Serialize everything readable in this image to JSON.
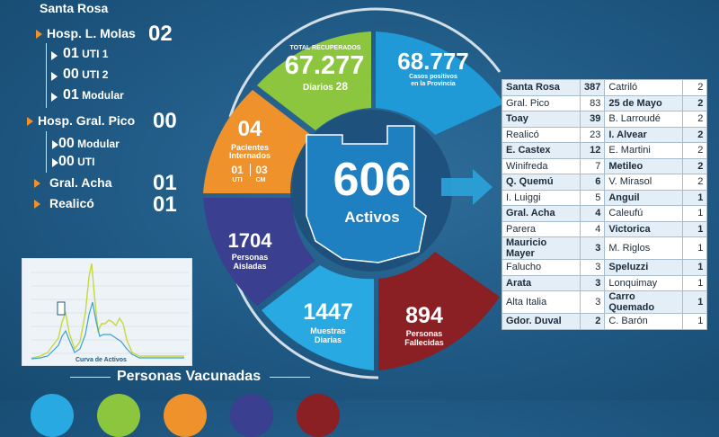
{
  "left": {
    "title": "Santa Rosa",
    "hospitals": [
      {
        "name": "Hosp. L. Molas",
        "count": "02"
      },
      {
        "name": "Hosp. Gral. Pico",
        "count": "00"
      },
      {
        "name": "Gral. Acha",
        "count": "01"
      },
      {
        "name": "Realicó",
        "count": "01"
      }
    ],
    "molas_sub": [
      {
        "num": "01",
        "label": "UTI 1"
      },
      {
        "num": "00",
        "label": "UTI 2"
      },
      {
        "num": "01",
        "label": "Modular"
      }
    ],
    "pico_sub": [
      {
        "num": "00",
        "label": "Modular"
      },
      {
        "num": "00",
        "label": "UTI"
      }
    ]
  },
  "wheel": {
    "recovered_label": "TOTAL RECUPERADOS",
    "recovered_value": "67.277",
    "daily_label": "Diarios",
    "daily_value": "28",
    "positive_value": "68.777",
    "positive_label_1": "Casos positivos",
    "positive_label_2": "en la Provincia",
    "internados_value": "04",
    "internados_label_1": "Pacientes",
    "internados_label_2": "Internados",
    "uti_value": "01",
    "uti_label": "UTI",
    "cm_value": "03",
    "cm_label": "CM",
    "aisladas_value": "1704",
    "aisladas_label_1": "Personas",
    "aisladas_label_2": "Aisladas",
    "muestras_value": "1447",
    "muestras_label_1": "Muestras",
    "muestras_label_2": "Diarias",
    "fallecidas_value": "894",
    "fallecidas_label_1": "Personas",
    "fallecidas_label_2": "Fallecidas",
    "activos_value": "606",
    "activos_label": "Activos"
  },
  "table": {
    "left": [
      {
        "name": "Santa Rosa",
        "value": "387",
        "bold": true
      },
      {
        "name": "Gral. Pico",
        "value": "83",
        "bold": false
      },
      {
        "name": "Toay",
        "value": "39",
        "bold": true
      },
      {
        "name": "Realicó",
        "value": "23",
        "bold": false
      },
      {
        "name": "E. Castex",
        "value": "12",
        "bold": true
      },
      {
        "name": "Winifreda",
        "value": "7",
        "bold": false
      },
      {
        "name": "Q. Quemú",
        "value": "6",
        "bold": true
      },
      {
        "name": "I. Luiggi",
        "value": "5",
        "bold": false
      },
      {
        "name": "Gral. Acha",
        "value": "4",
        "bold": true
      },
      {
        "name": "Parera",
        "value": "4",
        "bold": false
      },
      {
        "name": "Mauricio Mayer",
        "value": "3",
        "bold": true
      },
      {
        "name": "Falucho",
        "value": "3",
        "bold": false
      },
      {
        "name": "Arata",
        "value": "3",
        "bold": true
      },
      {
        "name": "Alta Italia",
        "value": "3",
        "bold": false
      },
      {
        "name": "Gdor. Duval",
        "value": "2",
        "bold": true
      }
    ],
    "right": [
      {
        "name": "Catriló",
        "value": "2",
        "bold": false
      },
      {
        "name": "25 de Mayo",
        "value": "2",
        "bold": true
      },
      {
        "name": "B. Larroudé",
        "value": "2",
        "bold": false
      },
      {
        "name": "I. Alvear",
        "value": "2",
        "bold": true
      },
      {
        "name": "E. Martini",
        "value": "2",
        "bold": false
      },
      {
        "name": "Metileo",
        "value": "2",
        "bold": true
      },
      {
        "name": "V. Mirasol",
        "value": "2",
        "bold": false
      },
      {
        "name": "Anguil",
        "value": "1",
        "bold": true
      },
      {
        "name": "Caleufú",
        "value": "1",
        "bold": false
      },
      {
        "name": "Victorica",
        "value": "1",
        "bold": true
      },
      {
        "name": "M. Riglos",
        "value": "1",
        "bold": false
      },
      {
        "name": "Speluzzi",
        "value": "1",
        "bold": true
      },
      {
        "name": "Lonquimay",
        "value": "1",
        "bold": false
      },
      {
        "name": "Carro Quemado",
        "value": "1",
        "bold": true
      },
      {
        "name": "C. Barón",
        "value": "1",
        "bold": false
      }
    ]
  },
  "curve": {
    "label": "Curva de Activos"
  },
  "vaccinated": {
    "title": "Personas Vacunadas"
  },
  "colors": {
    "recovered": "#8cc63f",
    "positive": "#1f9ad6",
    "internados": "#f0922b",
    "aisladas": "#3b3f8f",
    "muestras": "#29a9e1",
    "fallecidas": "#8a1f24",
    "center": "#1e7fc1"
  }
}
